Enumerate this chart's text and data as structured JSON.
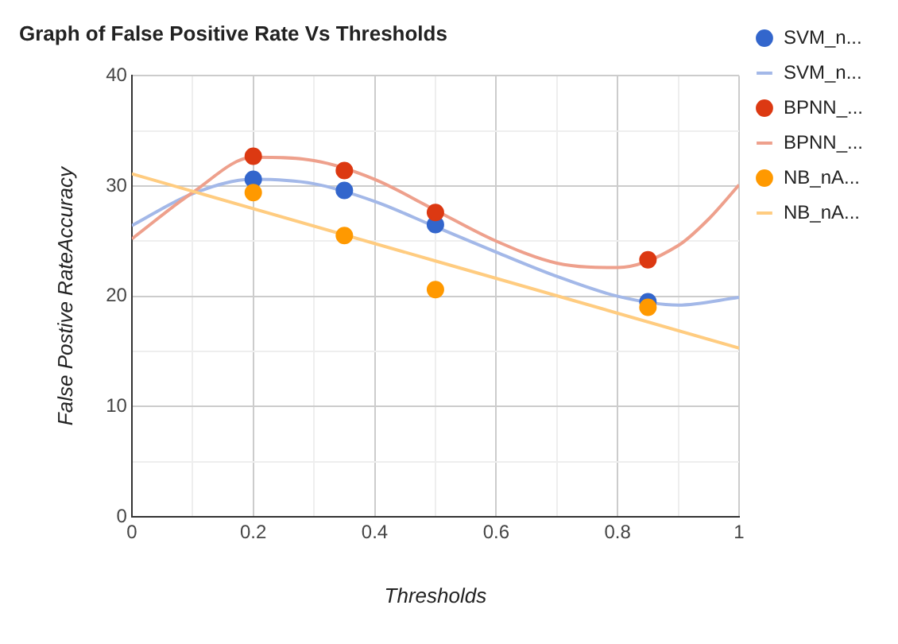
{
  "chart_data": {
    "type": "scatter",
    "title": "Graph of False Positive Rate Vs Thresholds",
    "xlabel": "Thresholds",
    "ylabel": "False Postive RateAccuracy",
    "xlim": [
      0,
      1
    ],
    "xticks": [
      0,
      {
        "value": 0.1,
        "label": null
      },
      0.2,
      {
        "value": 0.3,
        "label": null
      },
      0.4,
      {
        "value": 0.5,
        "label": null
      },
      0.6,
      {
        "value": 0.7,
        "label": null
      },
      0.8,
      {
        "value": 0.9,
        "label": null
      },
      1
    ],
    "ylim": [
      0,
      40
    ],
    "yticks": [
      0,
      {
        "value": 5,
        "label": null
      },
      10,
      {
        "value": 15,
        "label": null
      },
      20,
      {
        "value": 25,
        "label": null
      },
      30,
      {
        "value": 35,
        "label": null
      },
      40
    ],
    "grid": true,
    "legend": "right",
    "series": [
      {
        "name": "SVM_n...",
        "type": "scatter",
        "marker": "circle",
        "color": "#3366cc",
        "x": [
          0.2,
          0.35,
          0.5,
          0.85
        ],
        "values": [
          30.6,
          29.6,
          26.5,
          19.5
        ]
      },
      {
        "name": "SVM_n...",
        "type": "line",
        "marker": "none",
        "color": "#a3b8e8",
        "x": [
          0,
          0.1,
          0.2,
          0.3,
          0.4,
          0.5,
          0.6,
          0.7,
          0.8,
          0.9,
          1
        ],
        "values": [
          26.4,
          29.3,
          30.6,
          30.2,
          28.6,
          26.3,
          24.0,
          21.8,
          20.0,
          19.2,
          19.9
        ]
      },
      {
        "name": "BPNN_...",
        "type": "scatter",
        "marker": "circle",
        "color": "#dc3912",
        "x": [
          0.2,
          0.35,
          0.5,
          0.85
        ],
        "values": [
          32.7,
          31.4,
          27.6,
          23.3
        ]
      },
      {
        "name": "BPNN_...",
        "type": "line",
        "marker": "none",
        "color": "#eea08c",
        "x": [
          0,
          0.1,
          0.2,
          0.3,
          0.4,
          0.5,
          0.6,
          0.7,
          0.8,
          0.9,
          0.95,
          1
        ],
        "values": [
          25.2,
          29.4,
          32.6,
          32.3,
          30.6,
          27.8,
          25.0,
          23.0,
          22.6,
          24.6,
          27.0,
          30.1
        ]
      },
      {
        "name": "NB_nA...",
        "type": "scatter",
        "marker": "circle",
        "color": "#ff9900",
        "x": [
          0.2,
          0.35,
          0.5,
          0.85
        ],
        "values": [
          29.4,
          25.5,
          20.6,
          19.0
        ]
      },
      {
        "name": "NB_nA...",
        "type": "line",
        "marker": "none",
        "color": "#ffcc80",
        "x": [
          0,
          1
        ],
        "values": [
          31.1,
          15.3
        ]
      }
    ]
  }
}
